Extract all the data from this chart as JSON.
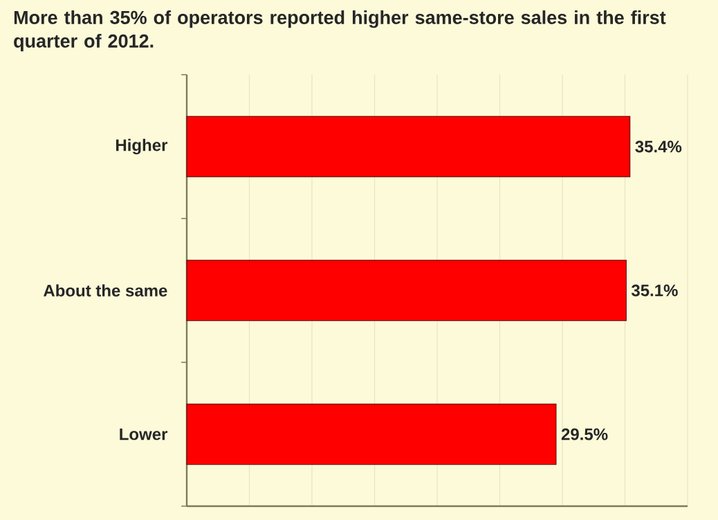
{
  "chart_data": {
    "type": "bar",
    "orientation": "horizontal",
    "title": "More than 35% of operators reported higher same-store sales in the first quarter of 2012.",
    "categories": [
      "Higher",
      "About the same",
      "Lower"
    ],
    "values": [
      35.4,
      35.1,
      29.5
    ],
    "value_labels": [
      "35.4%",
      "35.1%",
      "29.5%"
    ],
    "color": "#ff0000",
    "xlim": [
      0,
      40
    ],
    "xticks": [
      {
        "value": 0,
        "label": null
      },
      {
        "value": 5,
        "label": null
      },
      {
        "value": 10,
        "label": null
      },
      {
        "value": 15,
        "label": null
      },
      {
        "value": 20,
        "label": null
      },
      {
        "value": 25,
        "label": null
      },
      {
        "value": 30,
        "label": null
      },
      {
        "value": 35,
        "label": null
      },
      {
        "value": 40,
        "label": null
      }
    ],
    "grid": "x",
    "tick_labels": "y"
  }
}
